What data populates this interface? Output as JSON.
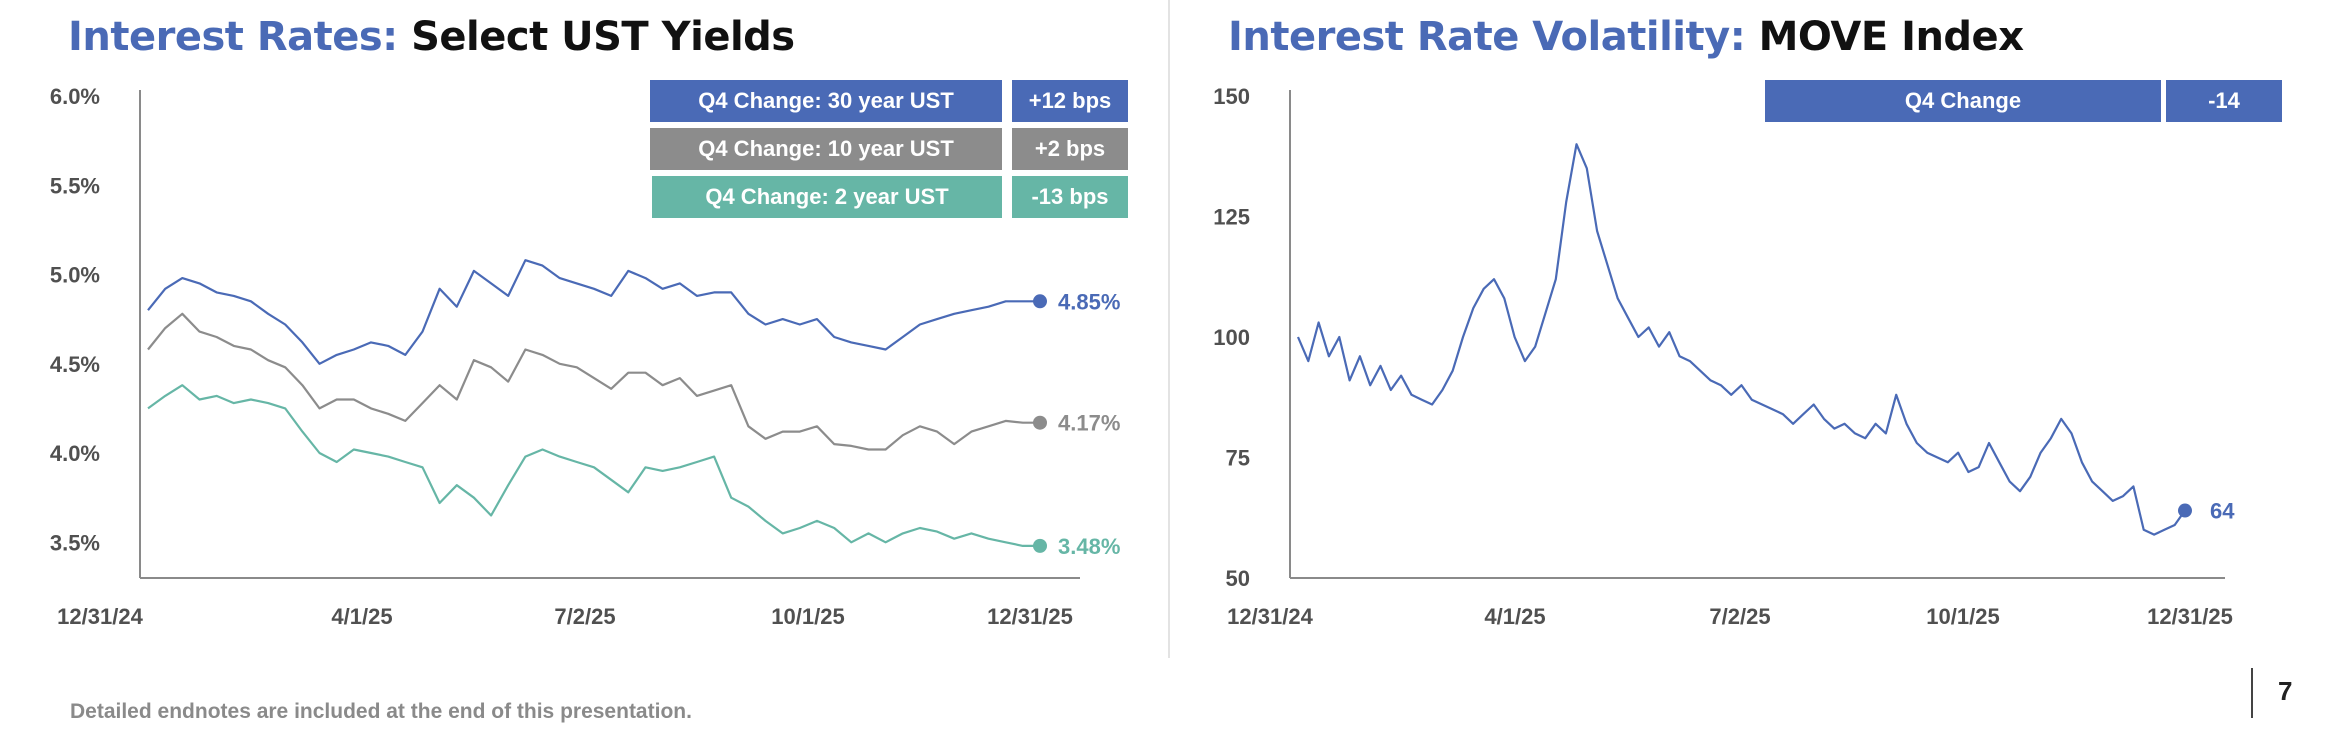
{
  "left_title": {
    "lead": "Interest Rates:",
    "rest": "Select UST Yields"
  },
  "right_title": {
    "lead": "Interest Rate Volatility:",
    "rest": "MOVE Index"
  },
  "footnote": "Detailed endnotes are included at the end of this presentation.",
  "page_number": "7",
  "colors": {
    "blue": "#4a6ab6",
    "gray": "#8c8c8c",
    "teal": "#66b6a6"
  },
  "chart_data": [
    {
      "type": "line",
      "x_labels": [
        "12/31/24",
        "4/1/25",
        "7/2/25",
        "10/1/25",
        "12/31/25"
      ],
      "y_ticks": [
        "6.0%",
        "5.5%",
        "5.0%",
        "4.5%",
        "4.0%",
        "3.5%"
      ],
      "ylim": [
        3.3,
        6.0
      ],
      "grid": false,
      "legend": [
        {
          "label": "Q4 Change: 30 year UST",
          "value": "+12 bps",
          "color": "#4a6ab6"
        },
        {
          "label": "Q4 Change: 10 year UST",
          "value": "+2 bps",
          "color": "#8c8c8c"
        },
        {
          "label": "Q4 Change: 2 year UST",
          "value": "-13 bps",
          "color": "#66b6a6"
        }
      ],
      "series": [
        {
          "end_label": "4.85%",
          "color": "#4a6ab6",
          "values": [
            4.8,
            4.92,
            4.98,
            4.95,
            4.9,
            4.88,
            4.85,
            4.78,
            4.72,
            4.62,
            4.5,
            4.55,
            4.58,
            4.62,
            4.6,
            4.55,
            4.68,
            4.92,
            4.82,
            5.02,
            4.95,
            4.88,
            5.08,
            5.05,
            4.98,
            4.95,
            4.92,
            4.88,
            5.02,
            4.98,
            4.92,
            4.95,
            4.88,
            4.9,
            4.9,
            4.78,
            4.72,
            4.75,
            4.72,
            4.75,
            4.65,
            4.62,
            4.6,
            4.58,
            4.65,
            4.72,
            4.75,
            4.78,
            4.8,
            4.82,
            4.85,
            4.85,
            4.85
          ]
        },
        {
          "end_label": "4.17%",
          "color": "#8c8c8c",
          "values": [
            4.58,
            4.7,
            4.78,
            4.68,
            4.65,
            4.6,
            4.58,
            4.52,
            4.48,
            4.38,
            4.25,
            4.3,
            4.3,
            4.25,
            4.22,
            4.18,
            4.28,
            4.38,
            4.3,
            4.52,
            4.48,
            4.4,
            4.58,
            4.55,
            4.5,
            4.48,
            4.42,
            4.36,
            4.45,
            4.45,
            4.38,
            4.42,
            4.32,
            4.35,
            4.38,
            4.15,
            4.08,
            4.12,
            4.12,
            4.15,
            4.05,
            4.04,
            4.02,
            4.02,
            4.1,
            4.15,
            4.12,
            4.05,
            4.12,
            4.15,
            4.18,
            4.17,
            4.17
          ]
        },
        {
          "end_label": "3.48%",
          "color": "#66b6a6",
          "values": [
            4.25,
            4.32,
            4.38,
            4.3,
            4.32,
            4.28,
            4.3,
            4.28,
            4.25,
            4.12,
            4.0,
            3.95,
            4.02,
            4.0,
            3.98,
            3.95,
            3.92,
            3.72,
            3.82,
            3.75,
            3.65,
            3.82,
            3.98,
            4.02,
            3.98,
            3.95,
            3.92,
            3.85,
            3.78,
            3.92,
            3.9,
            3.92,
            3.95,
            3.98,
            3.75,
            3.7,
            3.62,
            3.55,
            3.58,
            3.62,
            3.58,
            3.5,
            3.55,
            3.5,
            3.55,
            3.58,
            3.56,
            3.52,
            3.55,
            3.52,
            3.5,
            3.48,
            3.48
          ]
        }
      ]
    },
    {
      "type": "line",
      "x_labels": [
        "12/31/24",
        "4/1/25",
        "7/2/25",
        "10/1/25",
        "12/31/25"
      ],
      "y_ticks": [
        "150",
        "125",
        "100",
        "75",
        "50"
      ],
      "ylim": [
        50,
        150
      ],
      "grid": false,
      "legend": [
        {
          "label": "Q4 Change",
          "value": "-14",
          "color": "#4a6ab6"
        }
      ],
      "series": [
        {
          "end_label": "64",
          "color": "#4a6ab6",
          "values": [
            100,
            95,
            103,
            96,
            100,
            91,
            96,
            90,
            94,
            89,
            92,
            88,
            87,
            86,
            89,
            93,
            100,
            106,
            110,
            112,
            108,
            100,
            95,
            98,
            105,
            112,
            128,
            140,
            135,
            122,
            115,
            108,
            104,
            100,
            102,
            98,
            101,
            96,
            95,
            93,
            91,
            90,
            88,
            90,
            87,
            86,
            85,
            84,
            82,
            84,
            86,
            83,
            81,
            82,
            80,
            79,
            82,
            80,
            88,
            82,
            78,
            76,
            75,
            74,
            76,
            72,
            73,
            78,
            74,
            70,
            68,
            71,
            76,
            79,
            83,
            80,
            74,
            70,
            68,
            66,
            67,
            69,
            60,
            59,
            60,
            61,
            64
          ]
        }
      ]
    }
  ]
}
